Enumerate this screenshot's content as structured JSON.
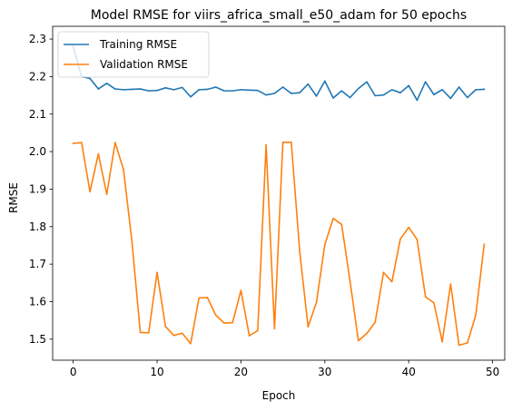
{
  "chart_data": {
    "type": "line",
    "title": "Model RMSE for viirs_africa_small_e50_adam for 50 epochs",
    "xlabel": "Epoch",
    "ylabel": "RMSE",
    "xlim": [
      -2.45,
      51.45
    ],
    "ylim": [
      1.444,
      2.334
    ],
    "xticks": [
      0,
      10,
      20,
      30,
      40,
      50
    ],
    "yticks": [
      1.5,
      1.6,
      1.7,
      1.8,
      1.9,
      2.0,
      2.1,
      2.2,
      2.3
    ],
    "grid": false,
    "legend_position": "upper-left",
    "x": [
      0,
      1,
      2,
      3,
      4,
      5,
      6,
      7,
      8,
      9,
      10,
      11,
      12,
      13,
      14,
      15,
      16,
      17,
      18,
      19,
      20,
      21,
      22,
      23,
      24,
      25,
      26,
      27,
      28,
      29,
      30,
      31,
      32,
      33,
      34,
      35,
      36,
      37,
      38,
      39,
      40,
      41,
      42,
      43,
      44,
      45,
      46,
      47,
      48,
      49
    ],
    "series": [
      {
        "name": "Training RMSE",
        "color": "#1f77b4",
        "values": [
          2.28,
          2.2,
          2.195,
          2.167,
          2.182,
          2.167,
          2.165,
          2.166,
          2.167,
          2.162,
          2.163,
          2.17,
          2.165,
          2.171,
          2.146,
          2.165,
          2.166,
          2.172,
          2.162,
          2.162,
          2.165,
          2.164,
          2.163,
          2.151,
          2.155,
          2.172,
          2.155,
          2.157,
          2.18,
          2.148,
          2.188,
          2.143,
          2.162,
          2.144,
          2.168,
          2.186,
          2.149,
          2.151,
          2.165,
          2.157,
          2.176,
          2.137,
          2.186,
          2.152,
          2.165,
          2.142,
          2.172,
          2.144,
          2.165,
          2.166
        ]
      },
      {
        "name": "Validation RMSE",
        "color": "#ff7f0e",
        "values": [
          2.022,
          2.024,
          1.893,
          1.994,
          1.886,
          2.024,
          1.952,
          1.761,
          1.518,
          1.517,
          1.678,
          1.534,
          1.51,
          1.516,
          1.488,
          1.61,
          1.611,
          1.564,
          1.543,
          1.544,
          1.63,
          1.509,
          1.523,
          2.018,
          1.528,
          2.025,
          2.025,
          1.735,
          1.533,
          1.598,
          1.752,
          1.822,
          1.806,
          1.656,
          1.496,
          1.515,
          1.545,
          1.678,
          1.653,
          1.767,
          1.798,
          1.766,
          1.613,
          1.597,
          1.493,
          1.647,
          1.484,
          1.49,
          1.565,
          1.753
        ]
      }
    ]
  }
}
